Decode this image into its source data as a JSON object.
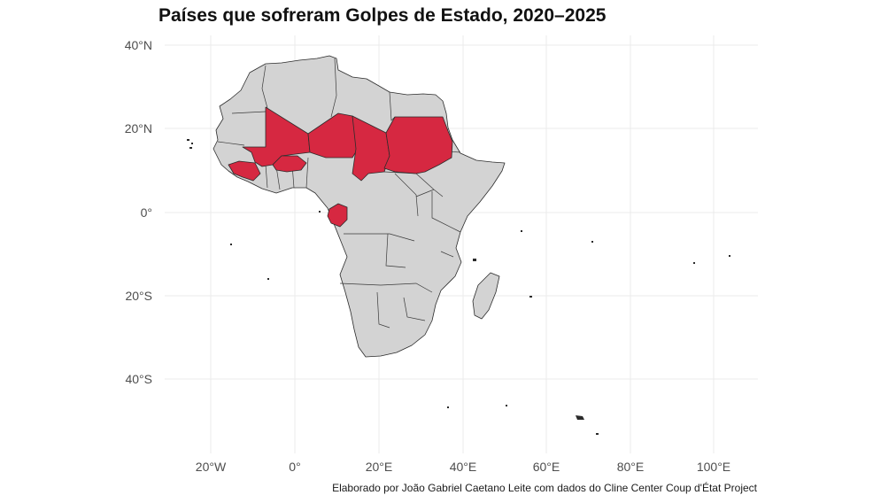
{
  "title": "Países que sofreram Golpes de Estado, 2020–2025",
  "caption": "Elaborado por João Gabriel Caetano Leite com dados do Cline Center Coup d'État Project",
  "axes": {
    "y_ticks": [
      "40°N",
      "20°N",
      "0°",
      "20°S",
      "40°S"
    ],
    "x_ticks": [
      "20°W",
      "0°",
      "20°E",
      "40°E",
      "60°E",
      "80°E",
      "100°E"
    ]
  },
  "colors": {
    "coup": "#d62841",
    "land": "#d3d3d3",
    "border": "#2b2b2b",
    "grid": "#ebebeb"
  },
  "highlighted_countries": [
    "Mali",
    "Burkina Faso",
    "Níger",
    "Chade",
    "Sudão",
    "Guiné",
    "Gabão"
  ]
}
